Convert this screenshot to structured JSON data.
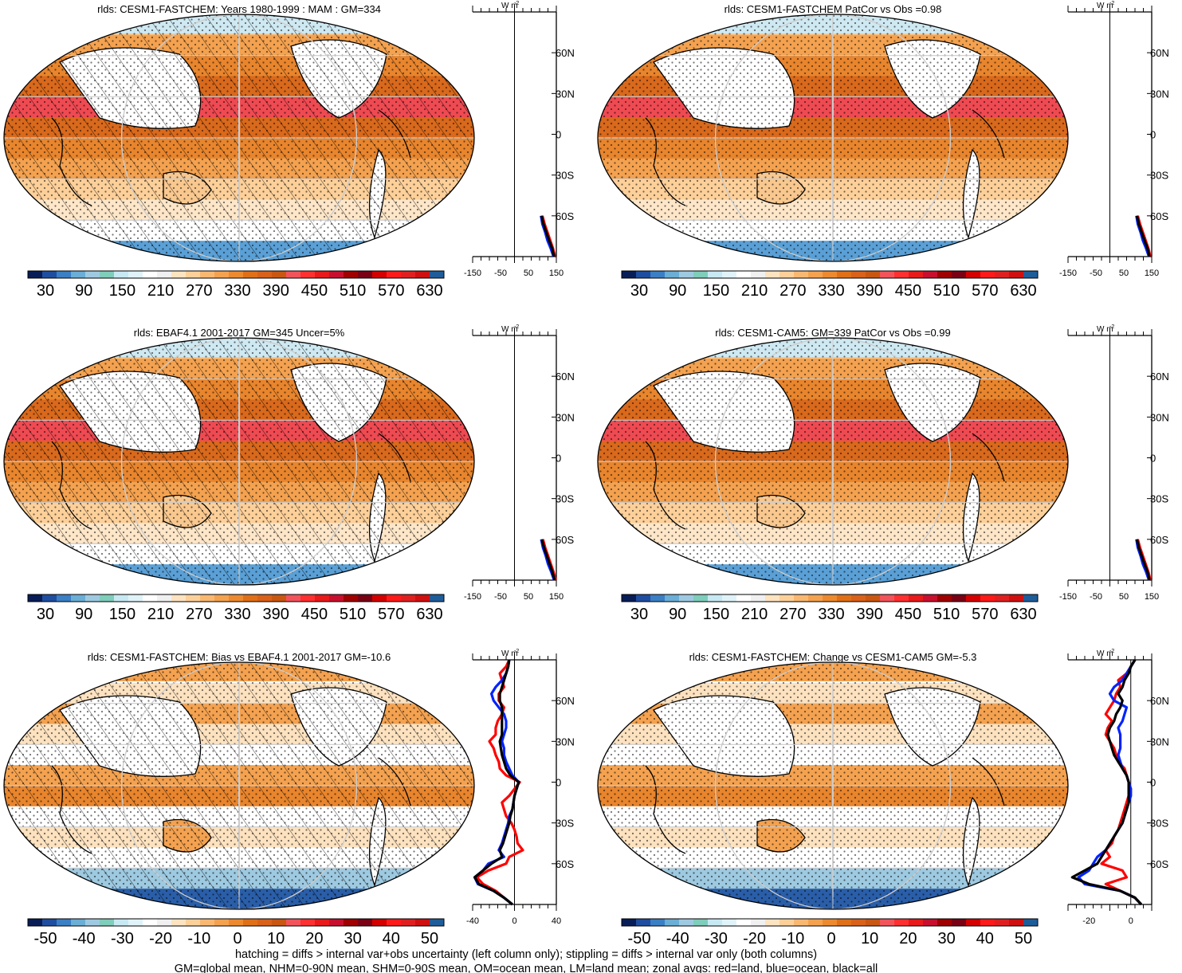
{
  "figure": {
    "footer_line1": "hatching = diffs > internal var+obs uncertainty (left column only); stippling = diffs > internal var only (both columns)",
    "footer_line2": "GM=global mean, NHM=0-90N mean, SHM=0-90S mean, OM=ocean mean, LM=land mean; zonal avgs: red=land, blue=ocean, black=all",
    "zonal_unit": "W m",
    "zonal_unit_sup": "-2",
    "lat_ticks": [
      "60N",
      "30N",
      "0",
      "30S",
      "60S"
    ]
  },
  "chart_data": [
    {
      "type": "map",
      "panel": "top-left",
      "title": "rlds: CESM1-FASTCHEM: Years 1980-1999 : MAM : GM=334",
      "colorbar": "abs",
      "hatching": true,
      "stippling": true,
      "zonal": {
        "xlim": [
          -150,
          150
        ],
        "xticks": [
          "-150",
          "-50",
          "50",
          "150"
        ],
        "lat": [
          -90,
          -84,
          -78,
          -72,
          -66,
          -60
        ],
        "land": [
          145,
          138,
          128,
          118,
          108,
          100
        ],
        "ocean": [
          140,
          130,
          118,
          110,
          100,
          95
        ],
        "all": [
          142,
          135,
          124,
          114,
          104,
          97
        ]
      }
    },
    {
      "type": "map",
      "panel": "top-right",
      "title": "rlds: CESM1-FASTCHEM PatCor vs Obs =0.98",
      "colorbar": "abs",
      "hatching": false,
      "stippling": true,
      "zonal": {
        "xlim": [
          -150,
          150
        ],
        "xticks": [
          "-150",
          "-50",
          "50",
          "150"
        ],
        "lat": [
          -90,
          -84,
          -78,
          -72,
          -66,
          -60
        ],
        "land": [
          145,
          138,
          128,
          118,
          108,
          100
        ],
        "ocean": [
          140,
          130,
          118,
          110,
          100,
          95
        ],
        "all": [
          142,
          135,
          124,
          114,
          104,
          97
        ]
      }
    },
    {
      "type": "map",
      "panel": "middle-left",
      "title": "rlds: EBAF4.1 2001-2017 GM=345 Uncer=5%",
      "colorbar": "abs",
      "hatching": true,
      "stippling": true,
      "zonal": {
        "xlim": [
          -150,
          150
        ],
        "xticks": [
          "-150",
          "-50",
          "50",
          "150"
        ],
        "lat": [
          -90,
          -84,
          -78,
          -72,
          -66,
          -60
        ],
        "land": [
          148,
          140,
          130,
          120,
          110,
          102
        ],
        "ocean": [
          142,
          132,
          120,
          112,
          102,
          96
        ],
        "all": [
          144,
          136,
          126,
          116,
          106,
          98
        ]
      }
    },
    {
      "type": "map",
      "panel": "middle-right",
      "title": "rlds: CESM1-CAM5: GM=339 PatCor vs Obs =0.99",
      "colorbar": "abs",
      "hatching": false,
      "stippling": true,
      "zonal": {
        "xlim": [
          -150,
          150
        ],
        "xticks": [
          "-150",
          "-50",
          "50",
          "150"
        ],
        "lat": [
          -90,
          -84,
          -78,
          -72,
          -66,
          -60
        ],
        "land": [
          145,
          138,
          128,
          118,
          108,
          100
        ],
        "ocean": [
          140,
          130,
          118,
          110,
          100,
          95
        ],
        "all": [
          142,
          135,
          124,
          114,
          104,
          97
        ]
      }
    },
    {
      "type": "map",
      "panel": "bottom-left",
      "title": "rlds: CESM1-FASTCHEM: Bias vs EBAF4.1 2001-2017 GM=-10.6",
      "colorbar": "diff",
      "hatching": true,
      "stippling": true,
      "zonal": {
        "xlim": [
          -40,
          40
        ],
        "xticks": [
          "-40",
          "0",
          "40"
        ],
        "lat": [
          -90,
          -85,
          -80,
          -75,
          -70,
          -65,
          -60,
          -55,
          -50,
          -45,
          -40,
          -35,
          -30,
          -25,
          -20,
          -15,
          -10,
          -5,
          0,
          5,
          10,
          15,
          20,
          25,
          30,
          35,
          40,
          45,
          50,
          55,
          60,
          65,
          70,
          75,
          80,
          85,
          90
        ],
        "land": [
          -2,
          -10,
          -18,
          -30,
          -36,
          -25,
          -8,
          -5,
          8,
          3,
          2,
          0,
          -3,
          -8,
          -10,
          -12,
          -5,
          0,
          5,
          -8,
          -14,
          -15,
          -18,
          -20,
          -24,
          -18,
          -18,
          -16,
          -12,
          -10,
          -15,
          -15,
          -10,
          -12,
          -14,
          -8,
          -5
        ],
        "ocean": [
          -2,
          -10,
          -20,
          -35,
          -38,
          -30,
          -25,
          -10,
          -15,
          -12,
          -10,
          -8,
          -6,
          -5,
          -2,
          -1,
          0,
          2,
          4,
          -2,
          -5,
          -8,
          -10,
          -10,
          -12,
          -10,
          -8,
          -8,
          -10,
          -15,
          -20,
          -22,
          -18,
          -12,
          -8,
          -6,
          -5
        ],
        "all": [
          -2,
          -10,
          -20,
          -34,
          -38,
          -30,
          -22,
          -12,
          -14,
          -11,
          -9,
          -7,
          -5,
          -4,
          -2,
          -1,
          0,
          2,
          4,
          -4,
          -8,
          -10,
          -12,
          -13,
          -14,
          -12,
          -12,
          -12,
          -12,
          -12,
          -14,
          -14,
          -12,
          -10,
          -8,
          -6,
          -5
        ]
      }
    },
    {
      "type": "map",
      "panel": "bottom-right",
      "title": "rlds: CESM1-FASTCHEM: Change vs CESM1-CAM5 GM=-5.3",
      "colorbar": "diff",
      "hatching": false,
      "stippling": true,
      "zonal": {
        "xlim": [
          -30,
          10
        ],
        "xticks": [
          "-20",
          "0"
        ],
        "lat": [
          -90,
          -85,
          -80,
          -75,
          -70,
          -65,
          -60,
          -55,
          -50,
          -45,
          -40,
          -35,
          -30,
          -25,
          -20,
          -15,
          -10,
          -5,
          0,
          5,
          10,
          15,
          20,
          25,
          30,
          35,
          40,
          45,
          50,
          55,
          60,
          65,
          70,
          75,
          80,
          85,
          90
        ],
        "land": [
          5,
          2,
          -5,
          -12,
          -2,
          -4,
          -14,
          -10,
          -12,
          -9,
          -8,
          -6,
          -5,
          -4,
          -3,
          -2,
          -1,
          0,
          -1,
          -2,
          -3,
          -6,
          -7,
          -8,
          -10,
          -12,
          -11,
          -9,
          -12,
          -10,
          -8,
          -7,
          -5,
          -6,
          -2,
          0,
          2
        ],
        "ocean": [
          5,
          2,
          -5,
          -22,
          -25,
          -20,
          -18,
          -16,
          -12,
          -10,
          -8,
          -6,
          -4,
          -3,
          -2,
          -1,
          0,
          0,
          -1,
          -2,
          -4,
          -5,
          -6,
          -5,
          -5,
          -5,
          -6,
          -4,
          -3,
          -2,
          -8,
          -10,
          -8,
          -4,
          -2,
          0,
          2
        ],
        "all": [
          5,
          2,
          -5,
          -20,
          -28,
          -22,
          -16,
          -14,
          -12,
          -10,
          -8,
          -6,
          -4,
          -3,
          -2,
          -1,
          -1,
          -1,
          -1,
          -2,
          -4,
          -6,
          -8,
          -9,
          -10,
          -11,
          -10,
          -8,
          -7,
          -5,
          -4,
          -6,
          -4,
          -3,
          -1,
          0,
          2
        ]
      }
    }
  ],
  "colorbars": {
    "abs": {
      "labels": [
        "30",
        "90",
        "150",
        "210",
        "270",
        "330",
        "390",
        "450",
        "510",
        "570",
        "630"
      ],
      "colors": [
        "#081d58",
        "#1f4ea0",
        "#3b7fc4",
        "#6baed6",
        "#9ecae1",
        "#7fcdbb",
        "#c7e9f4",
        "#e0f3f8",
        "#ffffff",
        "#f0f0f0",
        "#fee3c0",
        "#fdd09a",
        "#f9b872",
        "#f4a250",
        "#ed8a30",
        "#e07018",
        "#d9611a",
        "#c95712",
        "#f2545b",
        "#ff3030",
        "#e81a1a",
        "#c8102e",
        "#a00000",
        "#7a0014",
        "#d40000",
        "#ff1a1a",
        "#e02020",
        "#d01010",
        "#1f5d9a"
      ]
    },
    "diff": {
      "labels": [
        "-50",
        "-40",
        "-30",
        "-20",
        "-10",
        "0",
        "10",
        "20",
        "30",
        "40",
        "50"
      ],
      "colors": [
        "#081d58",
        "#1f4ea0",
        "#3b7fc4",
        "#6baed6",
        "#9ecae1",
        "#7fcdbb",
        "#c7e9f4",
        "#e0f3f8",
        "#ffffff",
        "#f0f0f0",
        "#fee3c0",
        "#fdd09a",
        "#f9b872",
        "#f4a250",
        "#ed8a30",
        "#e07018",
        "#d9611a",
        "#c95712",
        "#f2545b",
        "#ff3030",
        "#e81a1a",
        "#c8102e",
        "#a00000",
        "#7a0014",
        "#d40000",
        "#ff1a1a",
        "#e02020",
        "#d01010",
        "#1f5d9a"
      ]
    }
  }
}
